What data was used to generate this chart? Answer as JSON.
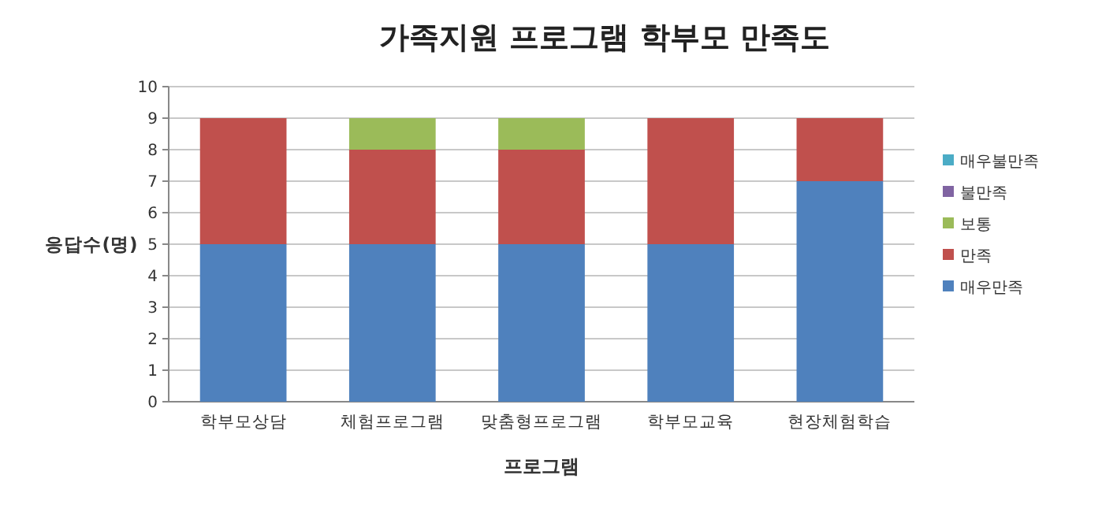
{
  "chart_data": {
    "type": "bar",
    "stacked": true,
    "title": "가족지원 프로그램 학부모 만족도",
    "xlabel": "프로그램",
    "ylabel": "응답수(명)",
    "categories": [
      "학부모상담",
      "체험프로그램",
      "맞춤형프로그램",
      "학부모교육",
      "현장체험학습"
    ],
    "series": [
      {
        "name": "매우만족",
        "color": "#4f81bd",
        "values": [
          5,
          5,
          5,
          5,
          7
        ]
      },
      {
        "name": "만족",
        "color": "#c0504d",
        "values": [
          4,
          3,
          3,
          4,
          2
        ]
      },
      {
        "name": "보통",
        "color": "#9bbb59",
        "values": [
          0,
          1,
          1,
          0,
          0
        ]
      },
      {
        "name": "불만족",
        "color": "#8064a2",
        "values": [
          0,
          0,
          0,
          0,
          0
        ]
      },
      {
        "name": "매우불만족",
        "color": "#4bacc6",
        "values": [
          0,
          0,
          0,
          0,
          0
        ]
      }
    ],
    "ylim": [
      0,
      10
    ],
    "yticks": [
      0,
      1,
      2,
      3,
      4,
      5,
      6,
      7,
      8,
      9,
      10
    ],
    "grid": "y",
    "legend": "right"
  }
}
